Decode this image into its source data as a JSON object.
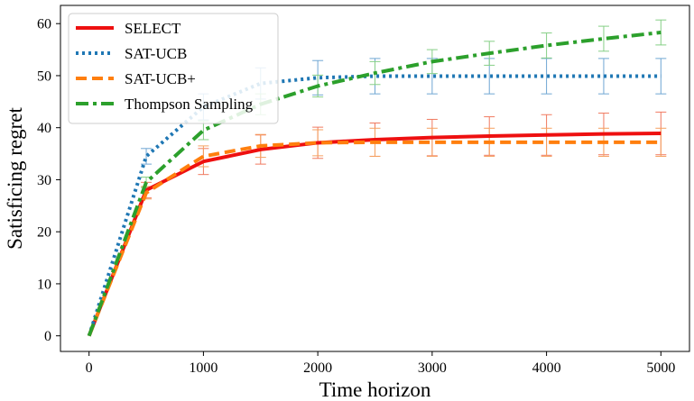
{
  "chart_data": {
    "type": "line",
    "title": "",
    "xlabel": "Time horizon",
    "ylabel": "Satisficing regret",
    "xlim": [
      -250,
      5250
    ],
    "ylim": [
      -3,
      63.5
    ],
    "xticks": [
      0,
      1000,
      2000,
      3000,
      4000,
      5000
    ],
    "yticks": [
      0,
      10,
      20,
      30,
      40,
      50,
      60
    ],
    "xtick_labels": [
      "0",
      "1000",
      "2000",
      "3000",
      "4000",
      "5000"
    ],
    "ytick_labels": [
      "0",
      "10",
      "20",
      "30",
      "40",
      "50",
      "60"
    ],
    "legend_position": "top-left",
    "x": [
      0,
      500,
      1000,
      1500,
      2000,
      2500,
      3000,
      3500,
      4000,
      4500,
      5000
    ],
    "series": [
      {
        "name": "SELECT",
        "color": "#ee1010",
        "errcolor": "#f07a60",
        "dash": "solid",
        "values": [
          0,
          28,
          33.5,
          35.8,
          37.1,
          37.7,
          38.1,
          38.4,
          38.6,
          38.8,
          38.9
        ],
        "err": [
          0,
          1.5,
          2.5,
          2.8,
          3.0,
          3.2,
          3.5,
          3.7,
          3.9,
          4.0,
          4.1
        ]
      },
      {
        "name": "SAT-UCB",
        "color": "#1f77b4",
        "errcolor": "#6fa6d3",
        "dash": "dotted",
        "values": [
          0,
          34.5,
          44,
          48.5,
          49.6,
          49.9,
          49.9,
          49.9,
          49.9,
          49.9,
          49.9
        ],
        "err": [
          0,
          1.5,
          2.5,
          3.0,
          3.3,
          3.4,
          3.4,
          3.4,
          3.4,
          3.4,
          3.4
        ]
      },
      {
        "name": "SAT-UCB+",
        "color": "#ff7f0e",
        "errcolor": "#f5a05f",
        "dash": "dashed",
        "values": [
          0,
          27.5,
          34.5,
          36.5,
          37.1,
          37.2,
          37.2,
          37.2,
          37.2,
          37.2,
          37.2
        ],
        "err": [
          0,
          1.2,
          2.0,
          2.2,
          2.5,
          2.7,
          2.7,
          2.7,
          2.7,
          2.7,
          2.7
        ]
      },
      {
        "name": "Thompson Sampling",
        "color": "#2ca02c",
        "errcolor": "#86cf86",
        "dash": "dashdot",
        "values": [
          0,
          29.5,
          39.5,
          44.5,
          48,
          50.5,
          52.7,
          54.3,
          55.8,
          57.1,
          58.3
        ],
        "err": [
          0,
          1.0,
          1.8,
          2.0,
          2.1,
          2.2,
          2.3,
          2.3,
          2.4,
          2.4,
          2.4
        ]
      }
    ]
  }
}
